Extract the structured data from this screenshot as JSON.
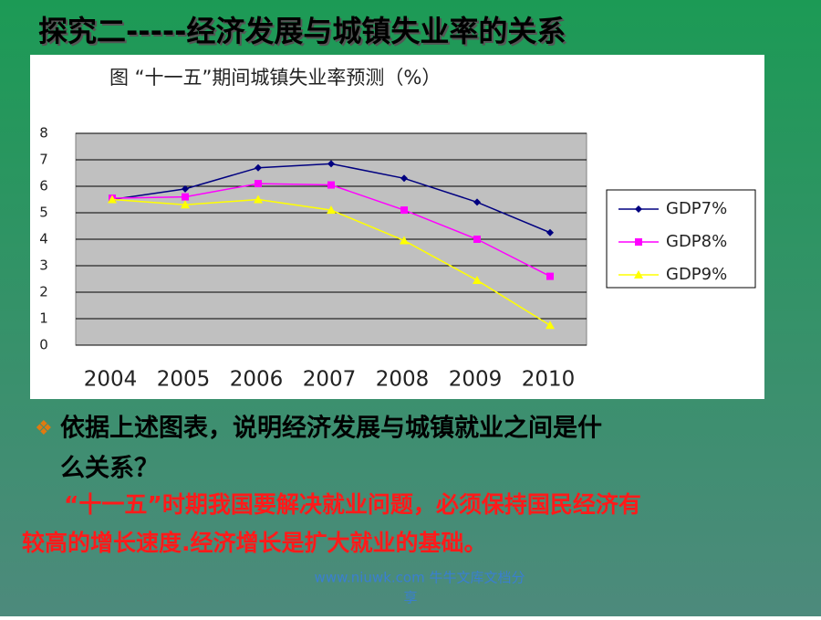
{
  "slide_title": "探究二-----经济发展与城镇失业率的关系",
  "chart_data": {
    "type": "line",
    "title": "图  “十一五”期间城镇失业率预测（%）",
    "categories": [
      "2004",
      "2005",
      "2006",
      "2007",
      "2008",
      "2009",
      "2010"
    ],
    "series": [
      {
        "name": "GDP7%",
        "color": "#000080",
        "marker": "diamond",
        "values": [
          5.5,
          5.9,
          6.7,
          6.85,
          6.3,
          5.4,
          4.25
        ]
      },
      {
        "name": "GDP8%",
        "color": "#ff00ff",
        "marker": "square",
        "values": [
          5.55,
          5.6,
          6.1,
          6.05,
          5.1,
          4.0,
          2.6
        ]
      },
      {
        "name": "GDP9%",
        "color": "#ffff00",
        "marker": "triangle",
        "values": [
          5.5,
          5.3,
          5.5,
          5.1,
          3.95,
          2.45,
          0.75
        ]
      }
    ],
    "ylim": [
      0,
      8
    ],
    "yticks": [
      0,
      1,
      2,
      3,
      4,
      5,
      6,
      7,
      8
    ],
    "grid": true,
    "legend": "right"
  },
  "question": [
    "依据上述图表，说明经济发展与城镇就业之间是什",
    "么关系？"
  ],
  "answer": [
    "“十一五”时期我国要解决就业问题，必须保持国民经济有",
    "较高的增长速度.经济增长是扩大就业的基础。"
  ],
  "footer": [
    "www.niuwk.com 牛牛文库文档分",
    "享"
  ]
}
